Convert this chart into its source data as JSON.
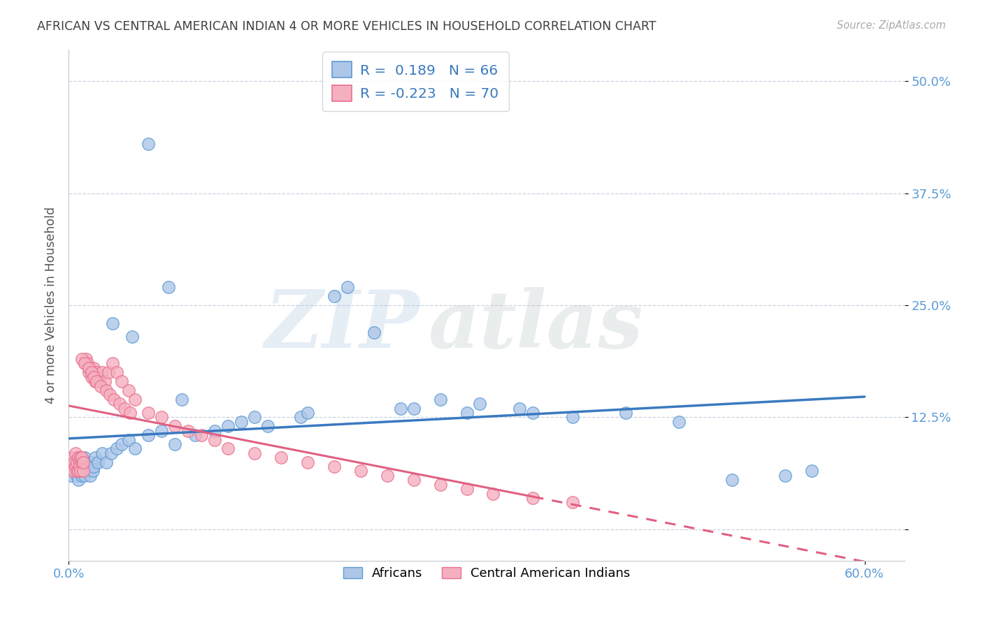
{
  "title": "AFRICAN VS CENTRAL AMERICAN INDIAN 4 OR MORE VEHICLES IN HOUSEHOLD CORRELATION CHART",
  "source": "Source: ZipAtlas.com",
  "ylabel": "4 or more Vehicles in Household",
  "ytick_values": [
    0.0,
    0.125,
    0.25,
    0.375,
    0.5
  ],
  "ytick_labels": [
    "",
    "12.5%",
    "25.0%",
    "37.5%",
    "50.0%"
  ],
  "xtick_values": [
    0.0,
    0.6
  ],
  "xtick_labels": [
    "0.0%",
    "60.0%"
  ],
  "xlim": [
    0.0,
    0.63
  ],
  "ylim": [
    -0.035,
    0.535
  ],
  "legend_blue_r": "0.189",
  "legend_blue_n": "66",
  "legend_pink_r": "-0.223",
  "legend_pink_n": "70",
  "blue_fill": "#aec6e8",
  "pink_fill": "#f5b0c0",
  "blue_edge": "#5b9bd5",
  "pink_edge": "#e87090",
  "blue_line": "#3a7abf",
  "pink_line": "#e06080",
  "ytick_color": "#5b9bd5",
  "xtick_color": "#5b9bd5",
  "grid_color": "#c8d4e0",
  "title_color": "#404040",
  "source_color": "#aaaaaa",
  "watermark_zip": "ZIP",
  "watermark_atlas": "atlas",
  "legend_bottom_labels": [
    "Africans",
    "Central American Indians"
  ],
  "african_x": [
    0.002,
    0.003,
    0.004,
    0.005,
    0.006,
    0.006,
    0.007,
    0.007,
    0.008,
    0.008,
    0.009,
    0.009,
    0.01,
    0.01,
    0.011,
    0.011,
    0.012,
    0.012,
    0.013,
    0.014,
    0.015,
    0.016,
    0.017,
    0.018,
    0.019,
    0.02,
    0.022,
    0.025,
    0.028,
    0.032,
    0.036,
    0.04,
    0.045,
    0.05,
    0.06,
    0.07,
    0.08,
    0.095,
    0.11,
    0.13,
    0.15,
    0.175,
    0.2,
    0.23,
    0.26,
    0.3,
    0.34,
    0.38,
    0.42,
    0.46,
    0.5,
    0.54,
    0.56,
    0.033,
    0.048,
    0.12,
    0.14,
    0.18,
    0.21,
    0.25,
    0.28,
    0.31,
    0.35,
    0.06,
    0.075,
    0.085
  ],
  "african_y": [
    0.06,
    0.07,
    0.065,
    0.075,
    0.06,
    0.08,
    0.07,
    0.055,
    0.075,
    0.065,
    0.07,
    0.08,
    0.06,
    0.075,
    0.065,
    0.07,
    0.08,
    0.06,
    0.075,
    0.065,
    0.07,
    0.06,
    0.075,
    0.065,
    0.07,
    0.08,
    0.075,
    0.085,
    0.075,
    0.085,
    0.09,
    0.095,
    0.1,
    0.09,
    0.105,
    0.11,
    0.095,
    0.105,
    0.11,
    0.12,
    0.115,
    0.125,
    0.26,
    0.22,
    0.135,
    0.13,
    0.135,
    0.125,
    0.13,
    0.12,
    0.055,
    0.06,
    0.065,
    0.23,
    0.215,
    0.115,
    0.125,
    0.13,
    0.27,
    0.135,
    0.145,
    0.14,
    0.13,
    0.43,
    0.27,
    0.145
  ],
  "cai_x": [
    0.001,
    0.002,
    0.003,
    0.004,
    0.005,
    0.005,
    0.006,
    0.006,
    0.007,
    0.007,
    0.008,
    0.008,
    0.009,
    0.009,
    0.01,
    0.01,
    0.011,
    0.011,
    0.012,
    0.013,
    0.014,
    0.015,
    0.016,
    0.017,
    0.018,
    0.019,
    0.02,
    0.021,
    0.022,
    0.023,
    0.025,
    0.027,
    0.03,
    0.033,
    0.036,
    0.04,
    0.045,
    0.05,
    0.06,
    0.07,
    0.08,
    0.09,
    0.1,
    0.11,
    0.12,
    0.14,
    0.16,
    0.18,
    0.2,
    0.22,
    0.24,
    0.26,
    0.28,
    0.3,
    0.32,
    0.35,
    0.38,
    0.01,
    0.012,
    0.015,
    0.017,
    0.019,
    0.021,
    0.024,
    0.028,
    0.031,
    0.034,
    0.038,
    0.042,
    0.046
  ],
  "cai_y": [
    0.07,
    0.08,
    0.065,
    0.075,
    0.07,
    0.085,
    0.065,
    0.075,
    0.08,
    0.065,
    0.075,
    0.07,
    0.08,
    0.065,
    0.075,
    0.08,
    0.065,
    0.075,
    0.185,
    0.19,
    0.185,
    0.175,
    0.18,
    0.17,
    0.175,
    0.18,
    0.165,
    0.175,
    0.17,
    0.165,
    0.175,
    0.165,
    0.175,
    0.185,
    0.175,
    0.165,
    0.155,
    0.145,
    0.13,
    0.125,
    0.115,
    0.11,
    0.105,
    0.1,
    0.09,
    0.085,
    0.08,
    0.075,
    0.07,
    0.065,
    0.06,
    0.055,
    0.05,
    0.045,
    0.04,
    0.035,
    0.03,
    0.19,
    0.185,
    0.18,
    0.175,
    0.17,
    0.165,
    0.16,
    0.155,
    0.15,
    0.145,
    0.14,
    0.135,
    0.13
  ]
}
